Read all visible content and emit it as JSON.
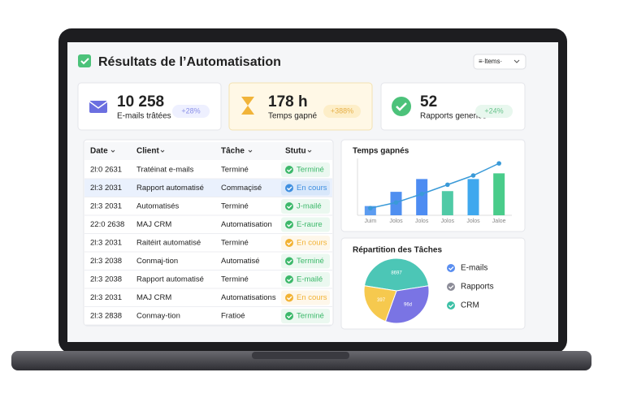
{
  "header": {
    "title": "Résultats de l’Automatisation",
    "filter": "≡·ltems·"
  },
  "kpis": [
    {
      "value": "10 258",
      "label": "E-mails trâtées",
      "badge": "+28%",
      "color": "#6b6fe0",
      "bg": "#ffffff",
      "badge_bg": "#eef0ff",
      "badge_color": "#8a8fe8"
    },
    {
      "value": "178 h",
      "label": "Temps gapné",
      "badge": "+388%",
      "color": "#f1b43a",
      "bg": "#fff8e6",
      "badge_bg": "#fdeec8",
      "badge_color": "#e6b04a"
    },
    {
      "value": "52",
      "label": "Rapports generiés",
      "badge": "+24%",
      "color": "#4cc27a",
      "bg": "#ffffff",
      "badge_bg": "#e8f7ee",
      "badge_color": "#66c28a"
    }
  ],
  "table": {
    "headers": [
      "Date",
      "Client",
      "Tâche",
      "Stutu"
    ],
    "rows": [
      [
        "2l:0 2631",
        "Tratéinat e-mails",
        "Terminé",
        "Terminé"
      ],
      [
        "2l:3 2031",
        "Rapport automatisé",
        "Commaçisé",
        "En cours"
      ],
      [
        "2l:3 2031",
        "Automatisés",
        "Terminé",
        "J-mailé"
      ],
      [
        "22:0 2638",
        "MAJ CRM",
        "Automatisation",
        "E-raure"
      ],
      [
        "2l:3 2031",
        "Raitéirt automatisé",
        "Terminé",
        "En cours"
      ],
      [
        "2l:3 2038",
        "Conmaj-tion",
        "Automatisé",
        "Terminé"
      ],
      [
        "2l:3 2038",
        "Rapport automatisé",
        "Terminé",
        "E-mailé"
      ],
      [
        "2l:3 2031",
        "MAJ CRM",
        "Automatisations",
        "En cours"
      ],
      [
        "2l:3 2838",
        "Conmay-tion",
        "Fratioé",
        "Terminé"
      ]
    ],
    "status_colors": [
      "#3cb86a",
      "#3f8fe0",
      "#3cb86a",
      "#3cb86a",
      "#f2b233",
      "#3cb86a",
      "#3cb86a",
      "#f2b233",
      "#3cb86a"
    ]
  },
  "bar_chart": {
    "title": "Temps gapnés",
    "categories": [
      "Juim",
      "Jolos",
      "Jolos",
      "Jolos",
      "Jolos",
      "Jaloe"
    ],
    "bars": [
      13,
      33,
      51,
      34,
      51,
      59
    ],
    "line": [
      10,
      18,
      30,
      43,
      56,
      73
    ],
    "ylim": [
      0,
      80
    ],
    "bar_colors": [
      "#5c9cf0",
      "#4f8ff0",
      "#4d8cf2",
      "#4fcaa6",
      "#3fa8ee",
      "#49cc8a"
    ],
    "line_color": "#3a9ad8"
  },
  "pie_chart": {
    "title": "Répartition des Tâches",
    "values": [
      45,
      33,
      22
    ],
    "labels": [
      "8697",
      "96d",
      "397"
    ],
    "colors": [
      "#4cc6b6",
      "#7a74e4",
      "#f6c94e"
    ],
    "legend": [
      {
        "name": "E-mails",
        "color": "#5a8ef0"
      },
      {
        "name": "Rapports",
        "color": "#8c8c98"
      },
      {
        "name": "CRM",
        "color": "#3cc0a6"
      }
    ]
  }
}
